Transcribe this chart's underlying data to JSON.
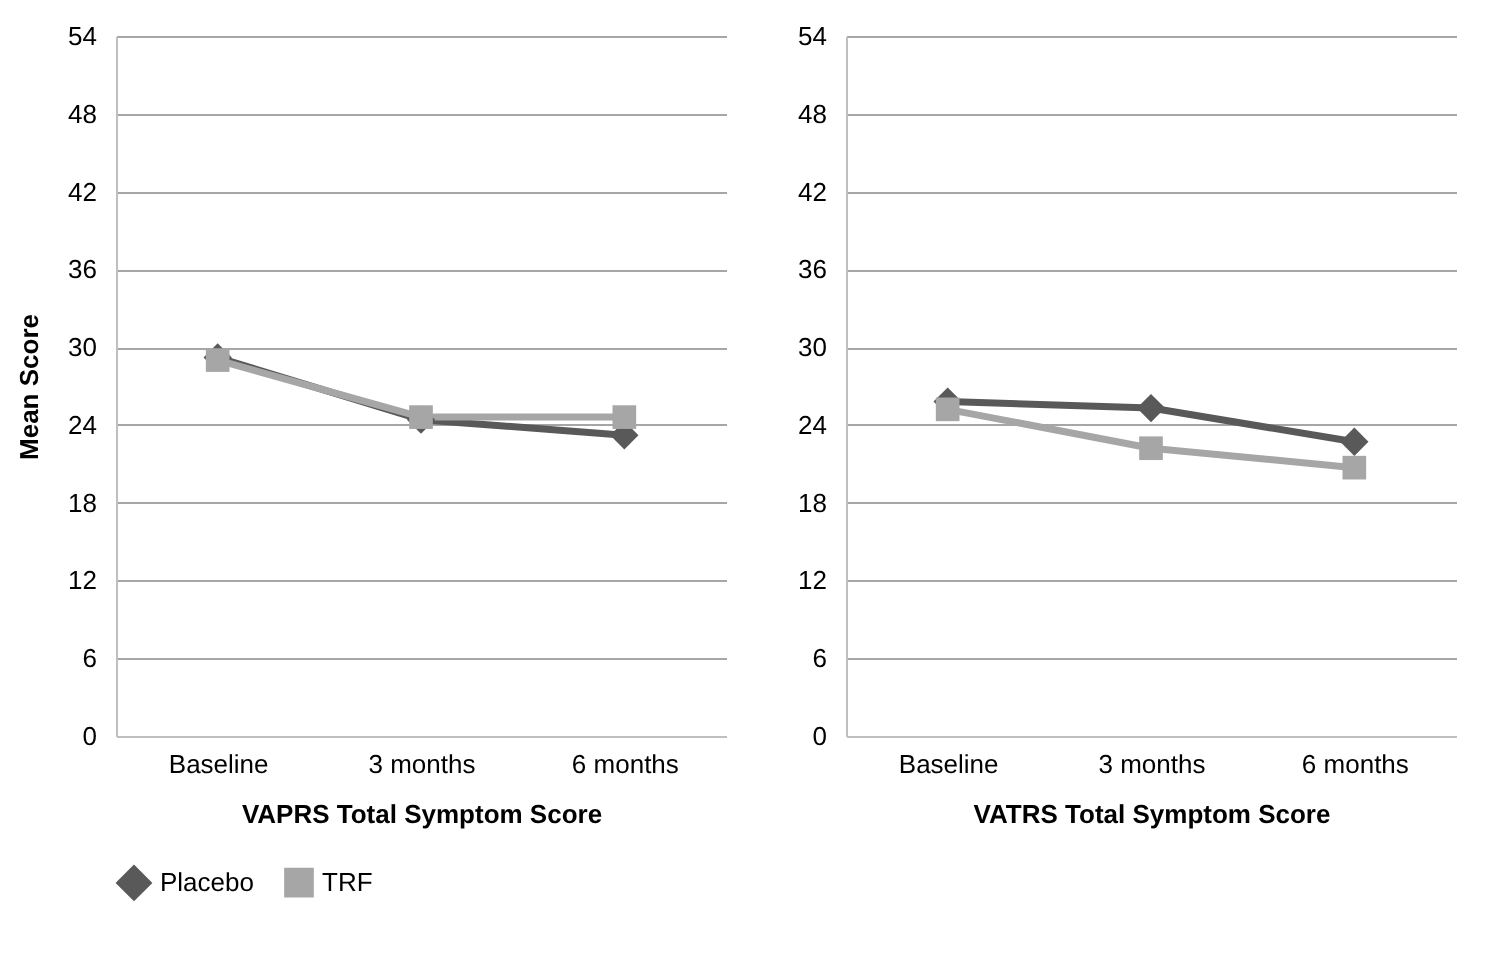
{
  "chart_data": [
    {
      "type": "line",
      "xlabel": "VAPRS Total Symptom Score",
      "ylabel": "Mean Score",
      "categories": [
        "Baseline",
        "3 months",
        "6 months"
      ],
      "ylim": [
        0,
        54
      ],
      "yticks": [
        0,
        6,
        12,
        18,
        24,
        30,
        36,
        42,
        48,
        54
      ],
      "grid": "y",
      "legend": "bottom",
      "series": [
        {
          "name": "Placebo",
          "color": "#595959",
          "marker": "diamond",
          "values": [
            29.2,
            24.4,
            23.2
          ]
        },
        {
          "name": "TRF",
          "color": "#a6a6a6",
          "marker": "square",
          "values": [
            29.0,
            24.6,
            24.6
          ]
        }
      ]
    },
    {
      "type": "line",
      "xlabel": "VATRS Total Symptom Score",
      "categories": [
        "Baseline",
        "3 months",
        "6 months"
      ],
      "ylim": [
        0,
        54
      ],
      "yticks": [
        0,
        6,
        12,
        18,
        24,
        30,
        36,
        42,
        48,
        54
      ],
      "grid": "y",
      "legend": "bottom",
      "series": [
        {
          "name": "Placebo",
          "color": "#595959",
          "marker": "diamond",
          "values": [
            25.8,
            25.3,
            22.7
          ]
        },
        {
          "name": "TRF",
          "color": "#a6a6a6",
          "marker": "square",
          "values": [
            25.2,
            22.2,
            20.7
          ]
        }
      ]
    }
  ]
}
